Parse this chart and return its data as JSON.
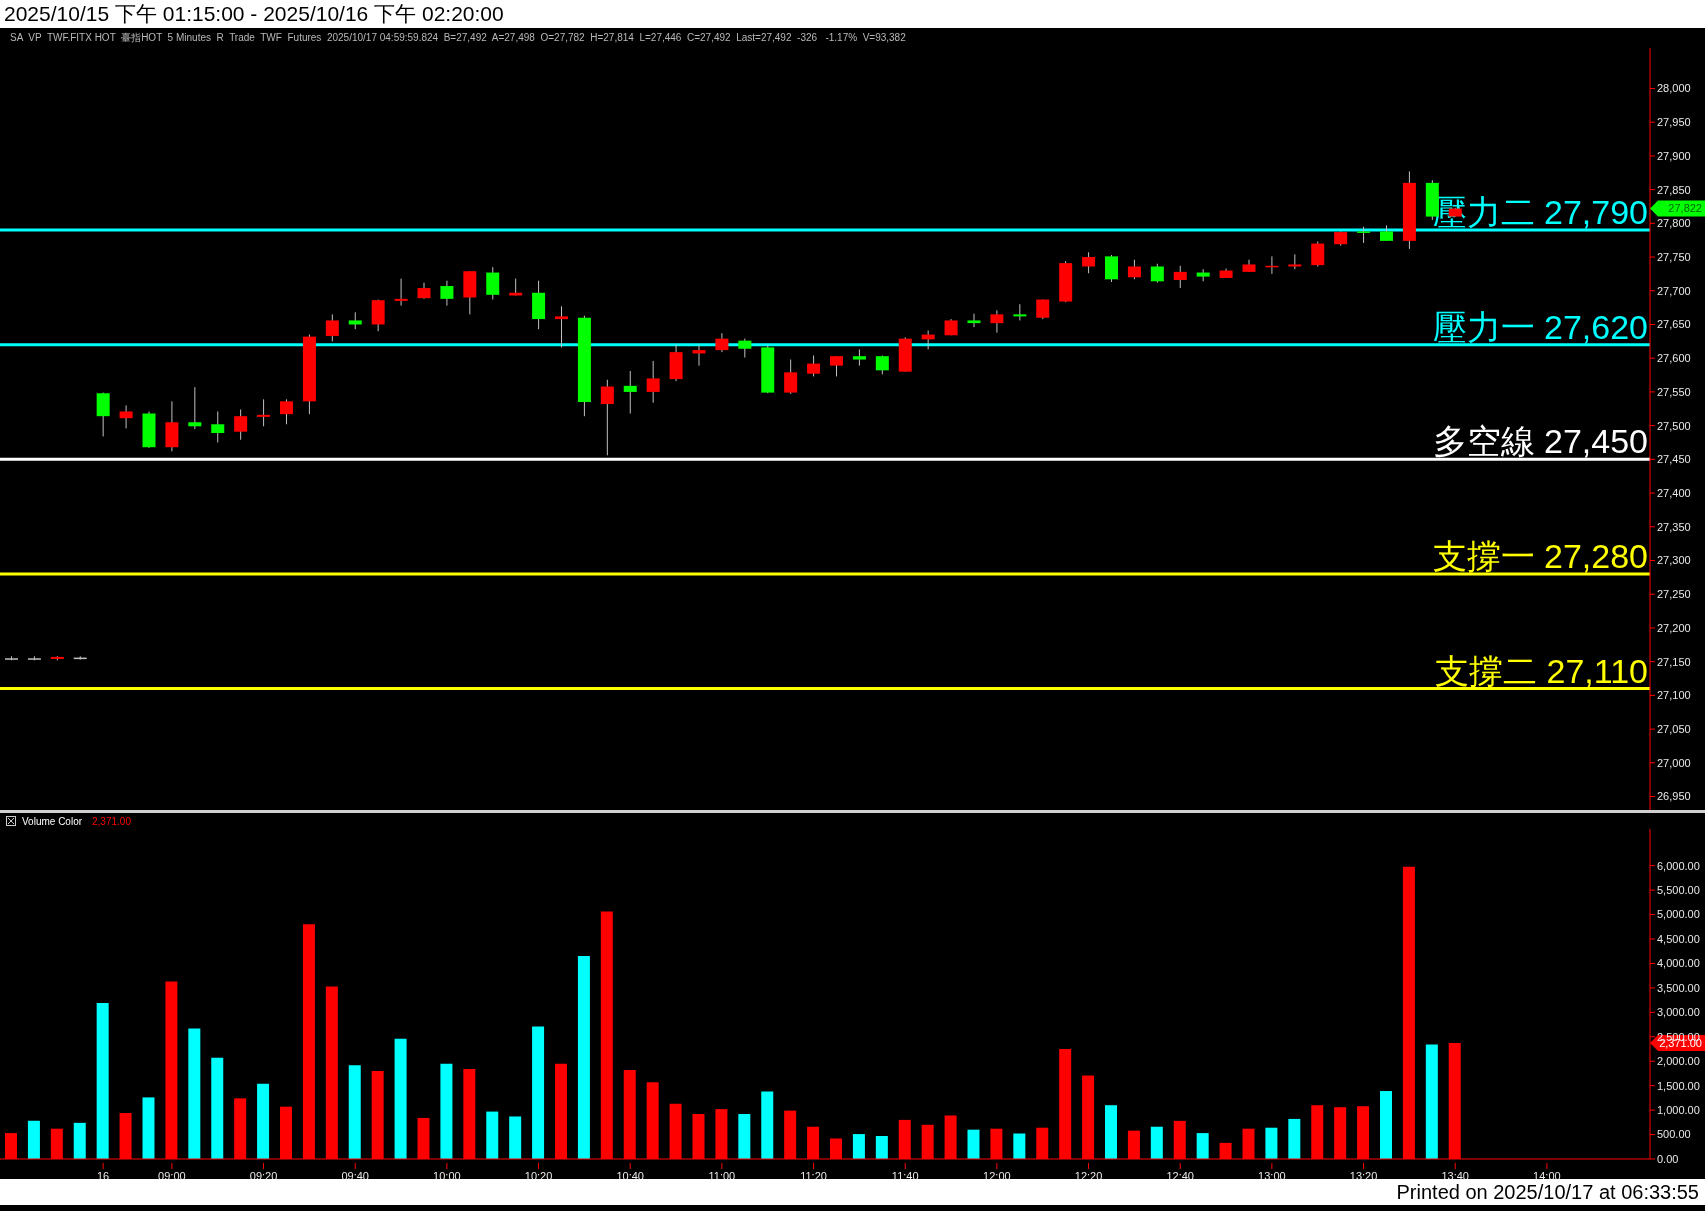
{
  "chart_data": [
    {
      "type": "candlestick",
      "title": "2025/10/15 下午 01:15:00 - 2025/10/16 下午 02:20:00",
      "subtitle": "SA  VP  TWF.FITX HOT  臺指HOT  5 Minutes  R  Trade  TWF  Futures  2025/10/17 04:59:59.824  B=27,492  A=27,498  O=27,782  H=27,814  L=27,446  C=27,492  Last=27,492  -326   -1.17%  V=93,382",
      "categories": [
        null,
        null,
        null,
        null,
        null,
        null,
        null,
        null,
        null,
        null,
        null,
        null,
        null,
        null,
        null,
        null,
        null,
        null,
        null,
        null,
        null,
        null,
        null,
        null,
        null,
        null,
        null,
        null,
        null,
        null,
        null,
        null,
        null,
        null,
        null,
        null,
        null,
        null,
        null,
        null,
        null,
        null,
        null,
        null,
        null,
        null,
        null,
        null,
        null,
        null,
        null,
        null,
        null,
        null,
        null,
        null,
        null,
        null,
        null,
        null,
        null,
        null,
        null,
        null,
        null,
        null,
        null,
        null,
        null,
        null,
        null,
        null
      ],
      "ohlc": [
        [
          27155,
          27158,
          27152,
          27155
        ],
        [
          27155,
          27158,
          27152,
          27155
        ],
        [
          27154,
          27158,
          27152,
          27157
        ],
        [
          27156,
          27158,
          27153,
          27156
        ],
        [
          27548,
          27549,
          27484,
          27514
        ],
        [
          27511,
          27530,
          27496,
          27521
        ],
        [
          27518,
          27521,
          27467,
          27468
        ],
        [
          27468,
          27536,
          27462,
          27505
        ],
        [
          27505,
          27557,
          27495,
          27499
        ],
        [
          27502,
          27521,
          27475,
          27489
        ],
        [
          27491,
          27524,
          27479,
          27514
        ],
        [
          27513,
          27539,
          27499,
          27516
        ],
        [
          27517,
          27539,
          27502,
          27536
        ],
        [
          27536,
          27635,
          27517,
          27632
        ],
        [
          27633,
          27665,
          27625,
          27656
        ],
        [
          27656,
          27668,
          27643,
          27650
        ],
        [
          27650,
          27687,
          27640,
          27686
        ],
        [
          27685,
          27718,
          27678,
          27688
        ],
        [
          27689,
          27712,
          27688,
          27704
        ],
        [
          27707,
          27715,
          27678,
          27688
        ],
        [
          27690,
          27729,
          27665,
          27729
        ],
        [
          27727,
          27735,
          27687,
          27694
        ],
        [
          27693,
          27718,
          27693,
          27697
        ],
        [
          27697,
          27715,
          27643,
          27658
        ],
        [
          27658,
          27677,
          27616,
          27662
        ],
        [
          27660,
          27663,
          27514,
          27535
        ],
        [
          27532,
          27568,
          27456,
          27558
        ],
        [
          27559,
          27581,
          27518,
          27550
        ],
        [
          27550,
          27596,
          27534,
          27570
        ],
        [
          27569,
          27620,
          27566,
          27609
        ],
        [
          27607,
          27620,
          27589,
          27612
        ],
        [
          27612,
          27637,
          27609,
          27629
        ],
        [
          27626,
          27629,
          27601,
          27614
        ],
        [
          27616,
          27619,
          27548,
          27549
        ],
        [
          27549,
          27598,
          27547,
          27579
        ],
        [
          27577,
          27604,
          27573,
          27592
        ],
        [
          27589,
          27603,
          27573,
          27603
        ],
        [
          27603,
          27613,
          27589,
          27598
        ],
        [
          27603,
          27604,
          27576,
          27582
        ],
        [
          27580,
          27631,
          27580,
          27629
        ],
        [
          27628,
          27641,
          27613,
          27635
        ],
        [
          27634,
          27658,
          27634,
          27656
        ],
        [
          27656,
          27666,
          27646,
          27652
        ],
        [
          27652,
          27671,
          27638,
          27665
        ],
        [
          27665,
          27680,
          27656,
          27662
        ],
        [
          27660,
          27687,
          27658,
          27687
        ],
        [
          27684,
          27744,
          27683,
          27741
        ],
        [
          27736,
          27757,
          27726,
          27750
        ],
        [
          27751,
          27753,
          27713,
          27717
        ],
        [
          27720,
          27746,
          27717,
          27736
        ],
        [
          27736,
          27740,
          27712,
          27714
        ],
        [
          27716,
          27737,
          27704,
          27728
        ],
        [
          27727,
          27732,
          27714,
          27721
        ],
        [
          27719,
          27733,
          27719,
          27730
        ],
        [
          27728,
          27746,
          27728,
          27739
        ],
        [
          27735,
          27751,
          27725,
          27737
        ],
        [
          27736,
          27754,
          27732,
          27739
        ],
        [
          27738,
          27773,
          27736,
          27770
        ],
        [
          27769,
          27788,
          27767,
          27787
        ],
        [
          27788,
          27795,
          27771,
          27786
        ],
        [
          27788,
          27797,
          27774,
          27774
        ],
        [
          27774,
          27877,
          27762,
          27860
        ],
        [
          27860,
          27864,
          27805,
          27810
        ],
        [
          27810,
          27823,
          27810,
          27822
        ],
        null,
        null,
        null,
        null,
        null,
        null,
        null,
        null
      ],
      "colors": [
        "#c0c0c0",
        "#c0c0c0",
        "#ff0000",
        "#c0c0c0",
        "#00ff00",
        "#ff0000",
        "#00ff00",
        "#ff0000",
        "#00ff00",
        "#00ff00",
        "#ff0000",
        "#ff0000",
        "#ff0000",
        "#ff0000",
        "#ff0000",
        "#00ff00",
        "#ff0000",
        "#ff0000",
        "#ff0000",
        "#00ff00",
        "#ff0000",
        "#00ff00",
        "#ff0000",
        "#00ff00",
        "#ff0000",
        "#00ff00",
        "#ff0000",
        "#00ff00",
        "#ff0000",
        "#ff0000",
        "#ff0000",
        "#ff0000",
        "#00ff00",
        "#00ff00",
        "#ff0000",
        "#ff0000",
        "#ff0000",
        "#00ff00",
        "#00ff00",
        "#ff0000",
        "#ff0000",
        "#ff0000",
        "#00ff00",
        "#ff0000",
        "#00ff00",
        "#ff0000",
        "#ff0000",
        "#ff0000",
        "#00ff00",
        "#ff0000",
        "#00ff00",
        "#ff0000",
        "#00ff00",
        "#ff0000",
        "#ff0000",
        "#ff0000",
        "#ff0000",
        "#ff0000",
        "#ff0000",
        "#00ff00",
        "#00ff00",
        "#ff0000",
        "#00ff00",
        "#ff0000",
        null,
        null,
        null,
        null,
        null,
        null,
        null,
        null
      ],
      "ylim": [
        26930,
        28060
      ],
      "yticks": [
        {
          "value": 26950,
          "label": "26,950"
        },
        {
          "value": 27000,
          "label": "27,000"
        },
        {
          "value": 27050,
          "label": "27,050"
        },
        {
          "value": 27100,
          "label": "27,100"
        },
        {
          "value": 27150,
          "label": "27,150"
        },
        {
          "value": 27200,
          "label": "27,200"
        },
        {
          "value": 27250,
          "label": "27,250"
        },
        {
          "value": 27300,
          "label": "27,300"
        },
        {
          "value": 27350,
          "label": "27,350"
        },
        {
          "value": 27400,
          "label": "27,400"
        },
        {
          "value": 27450,
          "label": "27,450"
        },
        {
          "value": 27500,
          "label": "27,500"
        },
        {
          "value": 27550,
          "label": "27,550"
        },
        {
          "value": 27600,
          "label": "27,600"
        },
        {
          "value": 27650,
          "label": "27,650"
        },
        {
          "value": 27700,
          "label": "27,700"
        },
        {
          "value": 27750,
          "label": "27,750"
        },
        {
          "value": 27800,
          "label": "27,800"
        },
        {
          "value": 27850,
          "label": "27,850"
        },
        {
          "value": 27900,
          "label": "27,900"
        },
        {
          "value": 27950,
          "label": "27,950"
        },
        {
          "value": 28000,
          "label": "28,000"
        }
      ],
      "ref_lines": [
        {
          "axis": "y",
          "value": 27790,
          "label": "壓力二 27,790",
          "color": "#00ffff"
        },
        {
          "axis": "y",
          "value": 27620,
          "label": "壓力一 27,620",
          "color": "#00ffff"
        },
        {
          "axis": "y",
          "value": 27450,
          "label": "多空線 27,450",
          "color": "#ffffff"
        },
        {
          "axis": "y",
          "value": 27280,
          "label": "支撐一 27,280",
          "color": "#ffff00"
        },
        {
          "axis": "y",
          "value": 27110,
          "label": "支撐二 27,110",
          "color": "#ffff00"
        }
      ],
      "annotations": [
        "27,822"
      ],
      "tick_labels": "y"
    },
    {
      "type": "bar",
      "title": "Volume Color",
      "categories": [
        null,
        null,
        null,
        null,
        "16",
        null,
        null,
        "09:00",
        null,
        null,
        null,
        "09:20",
        null,
        null,
        null,
        "09:40",
        null,
        null,
        null,
        "10:00",
        null,
        null,
        null,
        "10:20",
        null,
        null,
        null,
        "10:40",
        null,
        null,
        null,
        "11:00",
        null,
        null,
        null,
        "11:20",
        null,
        null,
        null,
        "11:40",
        null,
        null,
        null,
        "12:00",
        null,
        null,
        null,
        "12:20",
        null,
        null,
        null,
        "12:40",
        null,
        null,
        null,
        "13:00",
        null,
        null,
        null,
        "13:20",
        null,
        null,
        null,
        "13:40",
        null,
        null,
        null,
        "14:00",
        null,
        null,
        null,
        null
      ],
      "values": [
        530,
        780,
        620,
        740,
        3190,
        940,
        1260,
        3630,
        2670,
        2070,
        1240,
        1540,
        1070,
        4800,
        3530,
        1920,
        1800,
        2460,
        840,
        1950,
        1840,
        970,
        870,
        2710,
        1950,
        4150,
        5060,
        1820,
        1570,
        1130,
        920,
        1020,
        920,
        1380,
        990,
        660,
        420,
        510,
        470,
        800,
        700,
        890,
        600,
        620,
        520,
        640,
        2250,
        1710,
        1100,
        580,
        660,
        780,
        530,
        330,
        620,
        640,
        820,
        1100,
        1060,
        1080,
        1390,
        5980,
        2340,
        2371,
        null,
        null,
        null,
        null,
        null,
        null,
        null,
        null
      ],
      "colors": [
        "#ff0000",
        "#00ffff",
        "#ff0000",
        "#00ffff",
        "#00ffff",
        "#ff0000",
        "#00ffff",
        "#ff0000",
        "#00ffff",
        "#00ffff",
        "#ff0000",
        "#00ffff",
        "#ff0000",
        "#ff0000",
        "#ff0000",
        "#00ffff",
        "#ff0000",
        "#00ffff",
        "#ff0000",
        "#00ffff",
        "#ff0000",
        "#00ffff",
        "#00ffff",
        "#00ffff",
        "#ff0000",
        "#00ffff",
        "#ff0000",
        "#ff0000",
        "#ff0000",
        "#ff0000",
        "#ff0000",
        "#ff0000",
        "#00ffff",
        "#00ffff",
        "#ff0000",
        "#ff0000",
        "#ff0000",
        "#00ffff",
        "#00ffff",
        "#ff0000",
        "#ff0000",
        "#ff0000",
        "#00ffff",
        "#ff0000",
        "#00ffff",
        "#ff0000",
        "#ff0000",
        "#ff0000",
        "#00ffff",
        "#ff0000",
        "#00ffff",
        "#ff0000",
        "#00ffff",
        "#ff0000",
        "#ff0000",
        "#00ffff",
        "#00ffff",
        "#ff0000",
        "#ff0000",
        "#ff0000",
        "#00ffff",
        "#ff0000",
        "#00ffff",
        "#ff0000",
        null,
        null,
        null,
        null,
        null,
        null,
        null,
        null
      ],
      "ylim": [
        0,
        6750
      ],
      "yticks": [
        {
          "value": 0,
          "label": "0.00"
        },
        {
          "value": 500,
          "label": "500.00"
        },
        {
          "value": 1000,
          "label": "1,000.00"
        },
        {
          "value": 1500,
          "label": "1,500.00"
        },
        {
          "value": 2000,
          "label": "2,000.00"
        },
        {
          "value": 2500,
          "label": "2,500.00"
        },
        {
          "value": 3000,
          "label": "3,000.00"
        },
        {
          "value": 3500,
          "label": "3,500.00"
        },
        {
          "value": 4000,
          "label": "4,000.00"
        },
        {
          "value": 4500,
          "label": "4,500.00"
        },
        {
          "value": 5000,
          "label": "5,000.00"
        },
        {
          "value": 5500,
          "label": "5,500.00"
        },
        {
          "value": 6000,
          "label": "6,000.00"
        }
      ],
      "annotations": [
        "2,371.00",
        "2,371.00",
        "Printed on 2025/10/17 at 06:33:55"
      ]
    }
  ]
}
